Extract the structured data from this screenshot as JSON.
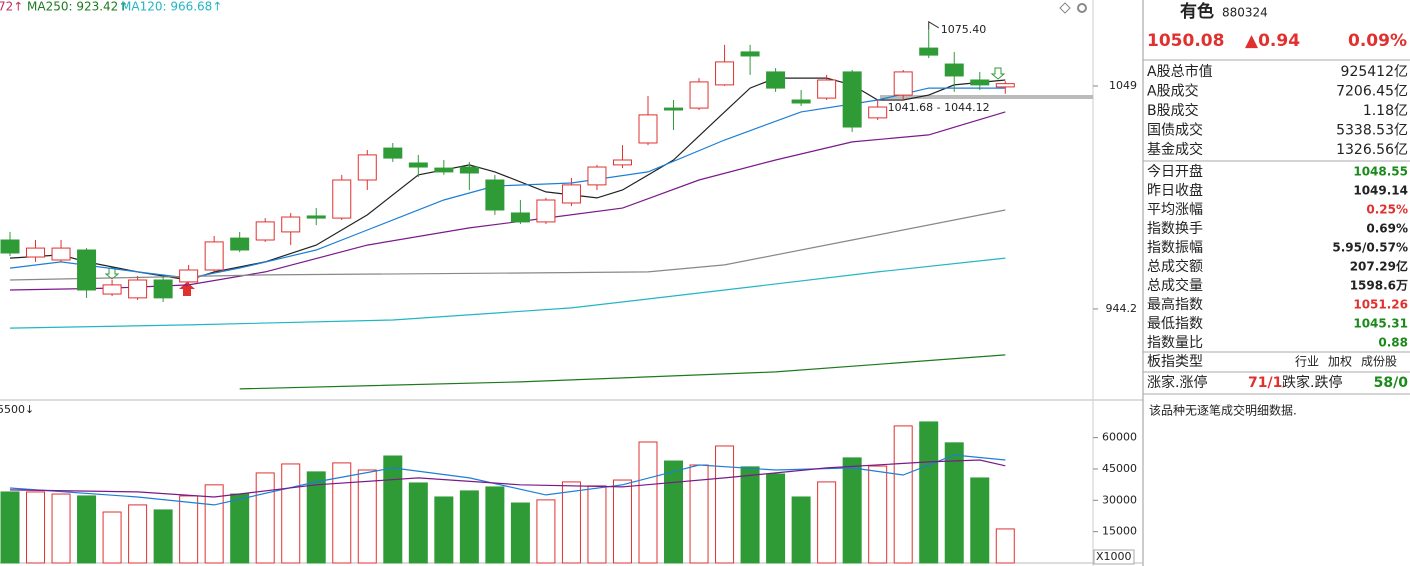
{
  "chart_data": [
    {
      "type": "candlestick",
      "annotations": [
        {
          "text": "72↑"
        },
        {
          "text": "1075.40"
        },
        {
          "text": "1041.68 - 1044.12"
        }
      ],
      "up_color": "#e0312f",
      "down_color": "#2f9b37",
      "open": [
        976.6,
        968.6,
        967.2,
        971.9,
        951.2,
        949.4,
        957.8,
        956.9,
        962.5,
        977.5,
        976.6,
        980.4,
        987.9,
        986.9,
        1004.8,
        1019.8,
        1012.8,
        1010.4,
        1010.9,
        1004.8,
        989.3,
        985.1,
        994.0,
        1002.5,
        1011.9,
        1022.2,
        1038.6,
        1038.6,
        1049.5,
        1065.0,
        1055.6,
        1042.4,
        1043.3,
        1055.6,
        1034.0,
        1044.7,
        1066.8,
        1059.3,
        1051.8,
        1048.55
      ],
      "high": [
        980.4,
        976.6,
        976.6,
        972.8,
        957.8,
        959.7,
        959.7,
        964.9,
        978.5,
        980.4,
        986.9,
        989.3,
        991.6,
        1007.2,
        1018.9,
        1022.2,
        1016.6,
        1014.2,
        1013.3,
        1007.2,
        995.4,
        996.4,
        1005.8,
        1011.9,
        1021.2,
        1044.3,
        1042.4,
        1052.7,
        1068.3,
        1068.3,
        1057.4,
        1047.1,
        1054.2,
        1056.5,
        1042.4,
        1056.5,
        1075.4,
        1065.0,
        1055.6,
        1051.26
      ],
      "low": [
        969.1,
        966.3,
        966.3,
        949.4,
        950.3,
        948.4,
        947.5,
        954.0,
        961.6,
        970.9,
        975.7,
        974.2,
        983.6,
        986.0,
        1000.1,
        1013.3,
        1006.2,
        1007.2,
        1000.1,
        988.4,
        984.1,
        984.1,
        992.6,
        1000.1,
        1010.4,
        1021.2,
        1028.3,
        1037.7,
        1049.0,
        1054.2,
        1046.2,
        1039.6,
        1042.4,
        1027.4,
        1033.0,
        1042.4,
        1062.1,
        1046.2,
        1047.1,
        1045.31
      ],
      "close": [
        970.5,
        972.8,
        972.8,
        953.1,
        955.5,
        957.8,
        949.4,
        962.5,
        975.7,
        971.9,
        985.1,
        987.4,
        986.9,
        1004.8,
        1016.6,
        1015.1,
        1010.9,
        1008.6,
        1008.1,
        990.7,
        985.1,
        995.4,
        1002.5,
        1010.9,
        1014.2,
        1035.4,
        1037.7,
        1050.9,
        1060.3,
        1063.1,
        1048.0,
        1041.0,
        1051.8,
        1029.7,
        1039.1,
        1055.6,
        1063.5,
        1053.7,
        1049.5,
        1050.08
      ],
      "lines": [
        {
          "color": "#222222",
          "x": [
            0,
            2,
            3,
            5,
            7,
            8,
            10,
            12,
            14,
            16,
            18,
            19,
            21,
            23,
            24,
            26,
            28,
            29,
            30,
            32,
            33,
            34,
            35,
            36,
            37,
            39
          ],
          "values": [
            968.1,
            969.6,
            966.3,
            961.6,
            957.8,
            961.6,
            966.3,
            974.2,
            988.4,
            1007.2,
            1011.9,
            1008.6,
            999.2,
            996.4,
            1000.1,
            1014.2,
            1036.8,
            1048.0,
            1052.7,
            1052.7,
            1049.5,
            1042.4,
            1042.4,
            1044.7,
            1049.5,
            1051.8
          ]
        },
        {
          "color": "#1e7ed6",
          "x": [
            0,
            2,
            5,
            7,
            9,
            12,
            14,
            17,
            19,
            22,
            25,
            28,
            31,
            34,
            36,
            39
          ],
          "values": [
            963.4,
            966.3,
            961.6,
            958.7,
            963.4,
            971.9,
            981.3,
            995.4,
            1002.0,
            1003.4,
            1008.6,
            1023.6,
            1036.8,
            1042.4,
            1048.0,
            1048.0
          ]
        },
        {
          "color": "#7a1a8a",
          "x": [
            0,
            4,
            7,
            10,
            14,
            18,
            21,
            24,
            27,
            30,
            33,
            36,
            39
          ],
          "values": [
            953.1,
            954.0,
            955.5,
            961.6,
            974.2,
            982.3,
            986.9,
            991.6,
            1004.8,
            1014.2,
            1022.7,
            1026.0,
            1036.8
          ]
        },
        {
          "color": "#888888",
          "x": [
            0,
            10,
            20,
            25,
            28,
            33,
            39
          ],
          "values": [
            957.8,
            960.2,
            961.1,
            961.6,
            964.9,
            976.6,
            990.7
          ]
        },
        {
          "name": "MA120: 966.68↑",
          "color": "#22b5c5",
          "x": [
            0,
            7,
            15,
            22,
            28,
            34,
            39
          ],
          "values": [
            935.2,
            936.7,
            939.0,
            944.7,
            953.1,
            961.6,
            968.1
          ]
        },
        {
          "name": "MA250: 923.42↑",
          "color": "#1d7a1d",
          "x": [
            9,
            20,
            30,
            39
          ],
          "values": [
            906.6,
            909.9,
            914.6,
            922.6
          ]
        }
      ],
      "ylim": [
        901.4,
        1089.4
      ],
      "yticks": [
        944.2,
        1049
      ]
    },
    {
      "type": "volume",
      "label": "5500↓",
      "unit_label": "X1000",
      "values": [
        34000,
        34000,
        33000,
        32100,
        24400,
        27800,
        25400,
        32100,
        37400,
        33000,
        43100,
        47400,
        43600,
        47900,
        44500,
        51200,
        38300,
        31600,
        34500,
        36400,
        28700,
        30200,
        38800,
        36900,
        39700,
        57900,
        48800,
        46900,
        56000,
        46000,
        42600,
        31600,
        38800,
        50300,
        46400,
        65600,
        67500,
        57500,
        40700,
        16300
      ],
      "lines": [
        {
          "color": "#1e7ed6",
          "x": [
            0,
            5,
            8,
            12,
            15,
            18,
            21,
            24,
            27,
            30,
            33,
            35,
            37,
            39
          ],
          "values": [
            35900,
            31600,
            27800,
            38800,
            45500,
            40700,
            32600,
            37400,
            46900,
            44500,
            45500,
            42100,
            51700,
            49300
          ]
        },
        {
          "color": "#7a1a8a",
          "x": [
            0,
            5,
            8,
            12,
            16,
            20,
            24,
            28,
            32,
            36,
            38,
            39
          ],
          "values": [
            35000,
            34000,
            31600,
            37400,
            40700,
            37400,
            36400,
            40700,
            45500,
            48400,
            49300,
            46500
          ]
        }
      ],
      "ylim": [
        0,
        78000
      ],
      "yticks": [
        15000,
        30000,
        45000,
        60000
      ]
    }
  ],
  "panel": {
    "name": "有色",
    "code": "880324",
    "price": "1050.08",
    "change": "▲0.94",
    "change_pct": "0.09%",
    "quote_color": "#e0312f",
    "market": [
      [
        "A股总市值",
        "925412亿"
      ],
      [
        "A股成交",
        "7206.45亿"
      ],
      [
        "B股成交",
        "1.18亿"
      ],
      [
        "国债成交",
        "5338.53亿"
      ],
      [
        "基金成交",
        "1326.56亿"
      ]
    ],
    "stats": [
      {
        "label": "今日开盘",
        "value": "1048.55",
        "color": "#1a8a1a"
      },
      {
        "label": "昨日收盘",
        "value": "1049.14",
        "color": "#222222"
      },
      {
        "label": "平均涨幅",
        "value": "0.25%",
        "color": "#e0312f"
      },
      {
        "label": "指数换手",
        "value": "0.69%",
        "color": "#222222"
      },
      {
        "label": "指数振幅",
        "value": "5.95/0.57%",
        "color": "#222222"
      },
      {
        "label": "总成交额",
        "value": "207.29亿",
        "color": "#222222"
      },
      {
        "label": "总成交量",
        "value": "1598.6万",
        "color": "#222222"
      },
      {
        "label": "最高指数",
        "value": "1051.26",
        "color": "#e0312f"
      },
      {
        "label": "最低指数",
        "value": "1045.31",
        "color": "#1a8a1a"
      },
      {
        "label": "指数量比",
        "value": "0.88",
        "color": "#1a8a1a"
      }
    ],
    "sector_type": {
      "label": "板指类型",
      "options": [
        "行业",
        "加权",
        "成份股"
      ]
    },
    "breadth": {
      "up_label": "涨家.涨停",
      "up_value": "71/1",
      "down_label": "跌家.跌停",
      "down_value": "58/0"
    },
    "message": "该品种无逐笔成交明细数据."
  }
}
